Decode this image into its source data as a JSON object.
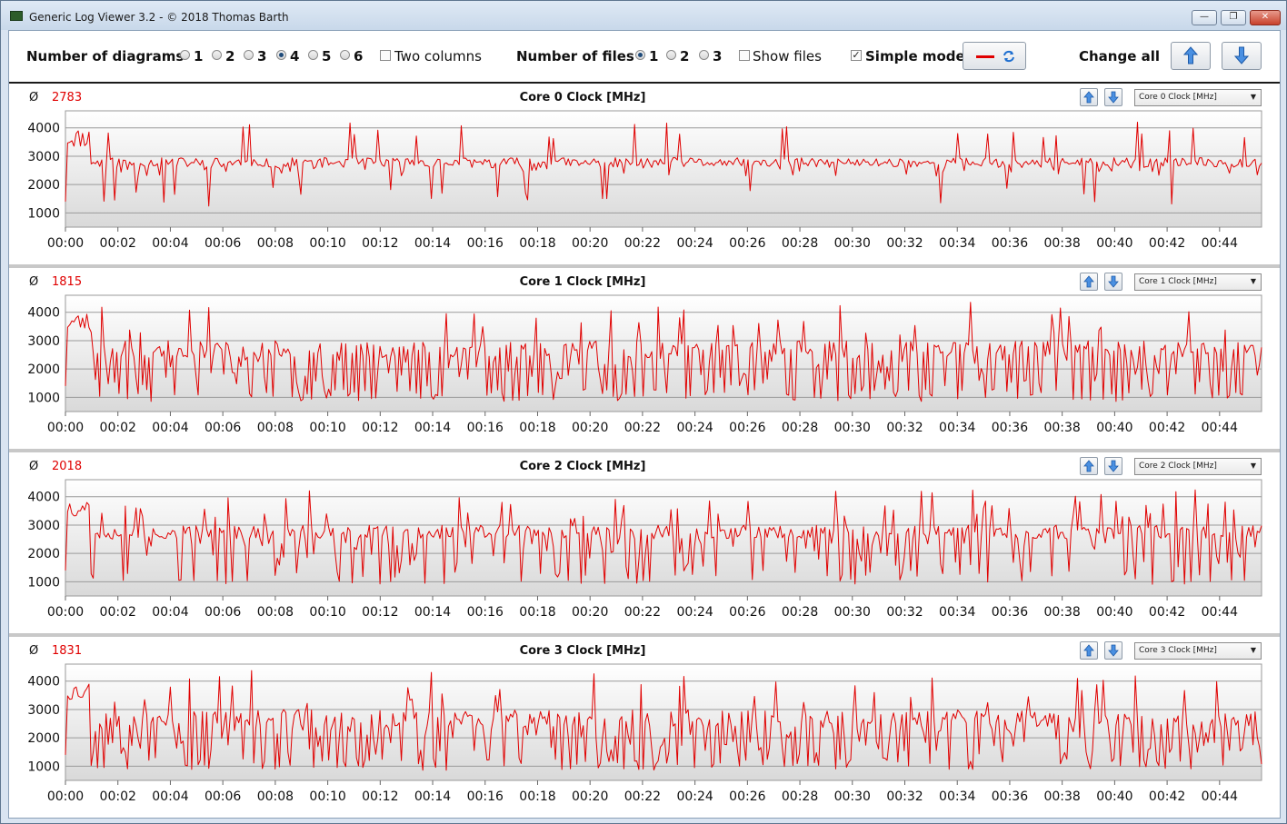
{
  "window": {
    "title": "Generic Log Viewer 3.2 - © 2018 Thomas Barth",
    "controls": {
      "minimize": "—",
      "maximize": "❐",
      "close": "✕"
    }
  },
  "toolbar": {
    "diagrams_label": "Number of diagrams",
    "diagram_options": [
      "1",
      "2",
      "3",
      "4",
      "5",
      "6"
    ],
    "diagrams_selected": "4",
    "two_columns_label": "Two columns",
    "two_columns_checked": false,
    "files_label": "Number of files",
    "file_options": [
      "1",
      "2",
      "3"
    ],
    "files_selected": "1",
    "show_files_label": "Show files",
    "show_files_checked": false,
    "simple_mode_label": "Simple mode",
    "simple_mode_checked": true,
    "change_all_label": "Change all",
    "line_color": "#e00000"
  },
  "panels": [
    {
      "average": "2783",
      "title": "Core 0 Clock [MHz]",
      "select_value": "Core 0 Clock [MHz]"
    },
    {
      "average": "1815",
      "title": "Core 1 Clock [MHz]",
      "select_value": "Core 1 Clock [MHz]"
    },
    {
      "average": "2018",
      "title": "Core 2 Clock [MHz]",
      "select_value": "Core 2 Clock [MHz]"
    },
    {
      "average": "1831",
      "title": "Core 3 Clock [MHz]",
      "select_value": "Core 3 Clock [MHz]"
    }
  ],
  "chart_data": [
    {
      "type": "line",
      "title": "Core 0 Clock [MHz]",
      "average": 2783,
      "x_ticks": [
        "00:00",
        "00:02",
        "00:04",
        "00:06",
        "00:08",
        "00:10",
        "00:12",
        "00:14",
        "00:16",
        "00:18",
        "00:20",
        "00:22",
        "00:24",
        "00:26",
        "00:28",
        "00:30",
        "00:32",
        "00:34",
        "00:36",
        "00:38",
        "00:40",
        "00:42",
        "00:44"
      ],
      "y_ticks": [
        1000,
        2000,
        3000,
        4000
      ],
      "ylim": [
        500,
        4600
      ],
      "xlim_minutes": [
        0,
        45.6
      ],
      "series": [
        {
          "color": "#e00000",
          "profile": "mostly-steady",
          "seed": 11
        }
      ]
    },
    {
      "type": "line",
      "title": "Core 1 Clock [MHz]",
      "average": 1815,
      "x_ticks": [
        "00:00",
        "00:02",
        "00:04",
        "00:06",
        "00:08",
        "00:10",
        "00:12",
        "00:14",
        "00:16",
        "00:18",
        "00:20",
        "00:22",
        "00:24",
        "00:26",
        "00:28",
        "00:30",
        "00:32",
        "00:34",
        "00:36",
        "00:38",
        "00:40",
        "00:42",
        "00:44"
      ],
      "y_ticks": [
        1000,
        2000,
        3000,
        4000
      ],
      "ylim": [
        500,
        4600
      ],
      "xlim_minutes": [
        0,
        45.6
      ],
      "series": [
        {
          "color": "#e00000",
          "profile": "highly-variable",
          "seed": 23
        }
      ]
    },
    {
      "type": "line",
      "title": "Core 2 Clock [MHz]",
      "average": 2018,
      "x_ticks": [
        "00:00",
        "00:02",
        "00:04",
        "00:06",
        "00:08",
        "00:10",
        "00:12",
        "00:14",
        "00:16",
        "00:18",
        "00:20",
        "00:22",
        "00:24",
        "00:26",
        "00:28",
        "00:30",
        "00:32",
        "00:34",
        "00:36",
        "00:38",
        "00:40",
        "00:42",
        "00:44"
      ],
      "y_ticks": [
        1000,
        2000,
        3000,
        4000
      ],
      "ylim": [
        500,
        4600
      ],
      "xlim_minutes": [
        0,
        45.6
      ],
      "series": [
        {
          "color": "#e00000",
          "profile": "variable",
          "seed": 37
        }
      ]
    },
    {
      "type": "line",
      "title": "Core 3 Clock [MHz]",
      "average": 1831,
      "x_ticks": [
        "00:00",
        "00:02",
        "00:04",
        "00:06",
        "00:08",
        "00:10",
        "00:12",
        "00:14",
        "00:16",
        "00:18",
        "00:20",
        "00:22",
        "00:24",
        "00:26",
        "00:28",
        "00:30",
        "00:32",
        "00:34",
        "00:36",
        "00:38",
        "00:40",
        "00:42",
        "00:44"
      ],
      "y_ticks": [
        1000,
        2000,
        3000,
        4000
      ],
      "ylim": [
        500,
        4600
      ],
      "xlim_minutes": [
        0,
        45.6
      ],
      "series": [
        {
          "color": "#e00000",
          "profile": "highly-variable",
          "seed": 53
        }
      ]
    }
  ]
}
